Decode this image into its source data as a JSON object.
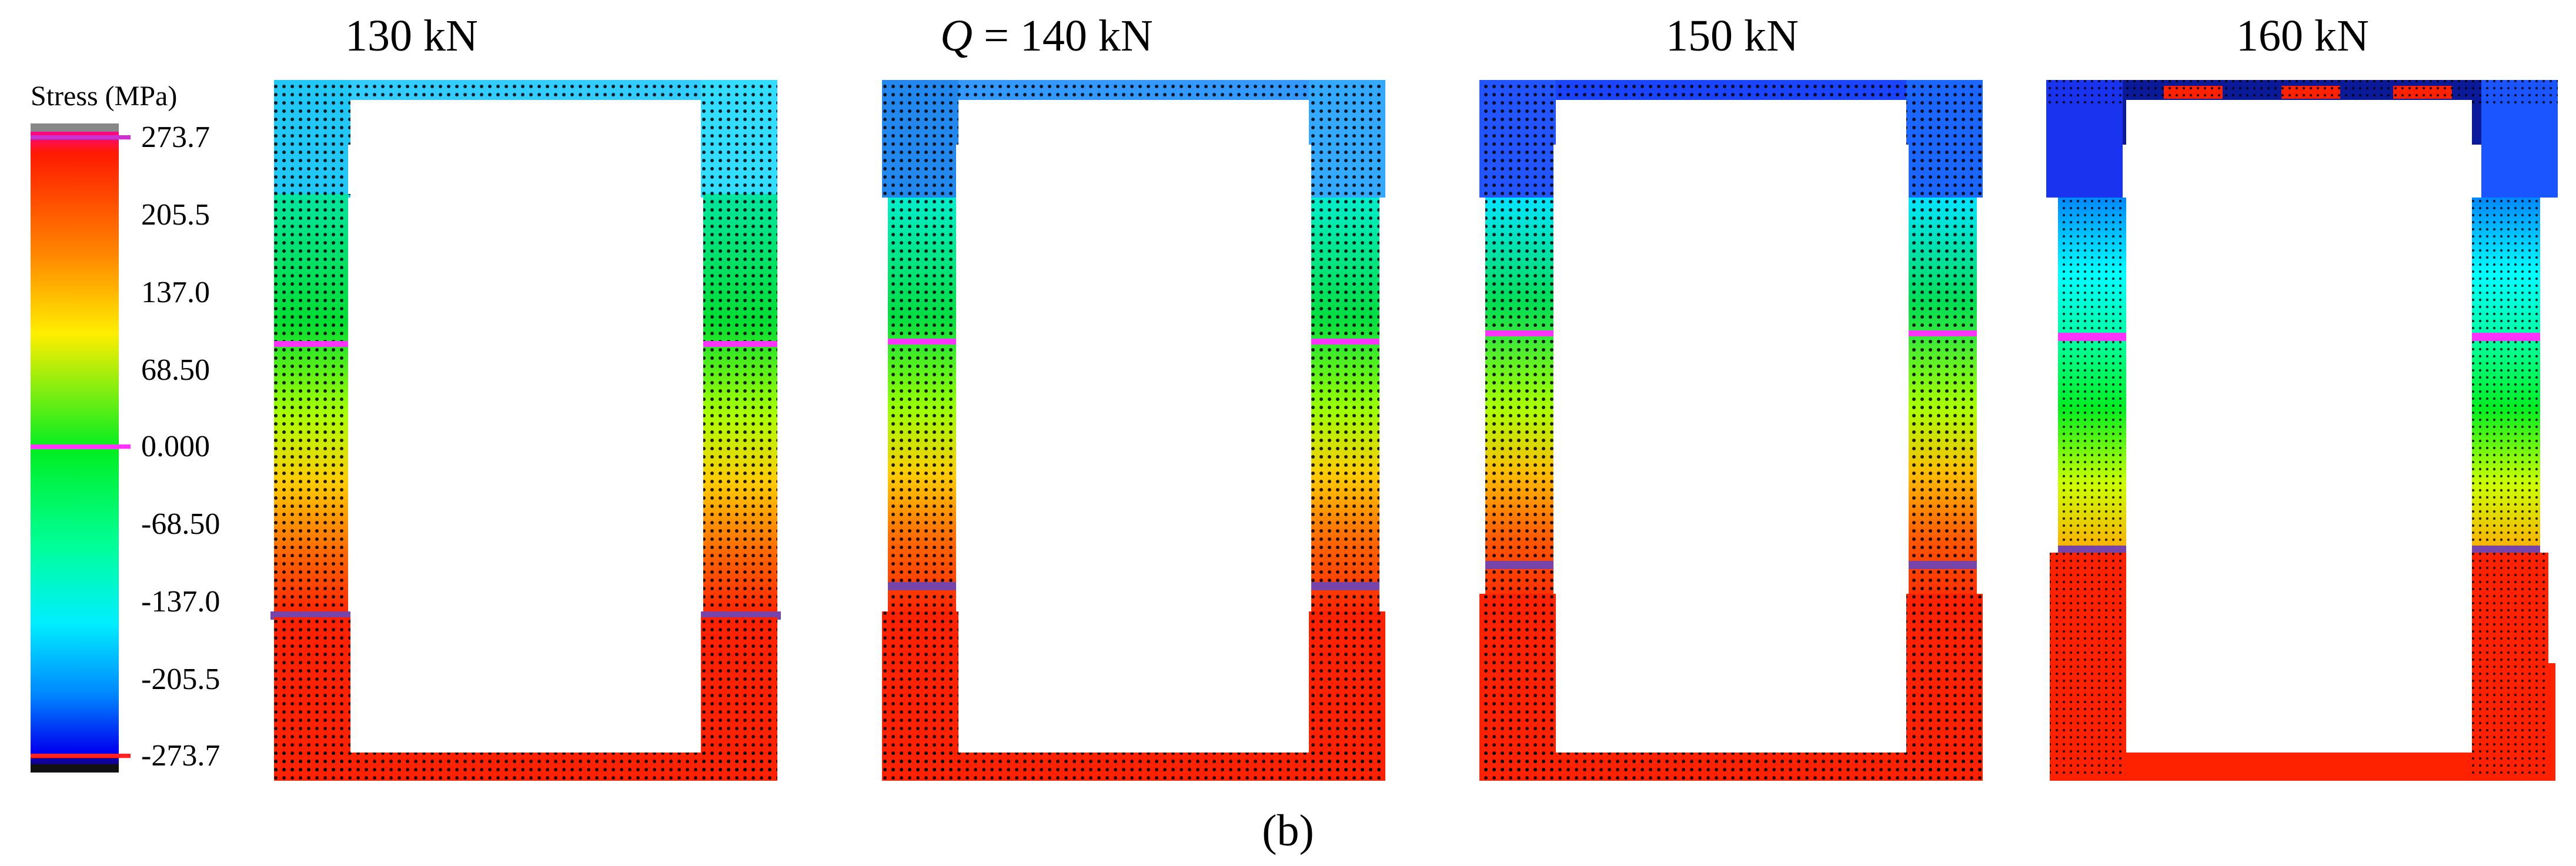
{
  "figure": {
    "caption": "(b)",
    "legend": {
      "title": "Stress (MPa)",
      "ticks": [
        "273.7",
        "205.5",
        "137.0",
        "68.50",
        "0.000",
        "-68.50",
        "-137.0",
        "-205.5",
        "-273.7"
      ],
      "max": 273.7,
      "min": -273.7
    },
    "panels": [
      {
        "title_prefix": "",
        "title_value": "130 kN",
        "load_kN": 130
      },
      {
        "title_prefix": "Q",
        "title_value": " = 140 kN",
        "load_kN": 140
      },
      {
        "title_prefix": "",
        "title_value": "150 kN",
        "load_kN": 150
      },
      {
        "title_prefix": "",
        "title_value": "160 kN",
        "load_kN": 160
      }
    ],
    "colors": {
      "high": "#ff1a00",
      "mid": "#00ff33",
      "low": "#0000ff",
      "marker": "#ff33ff",
      "band": "#7744aa"
    }
  }
}
